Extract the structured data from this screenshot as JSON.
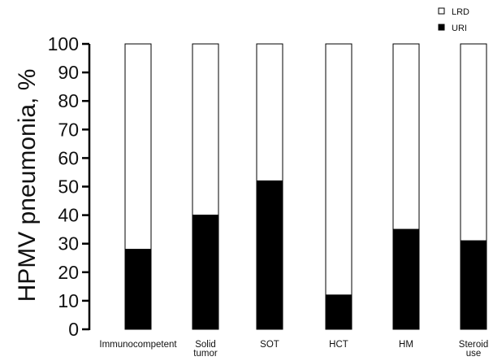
{
  "chart_data": {
    "type": "bar",
    "stacked": true,
    "categories": [
      [
        "Immunocompetent"
      ],
      [
        "Solid",
        "tumor"
      ],
      [
        "SOT"
      ],
      [
        "HCT"
      ],
      [
        "HM"
      ],
      [
        "Steroid",
        "use"
      ]
    ],
    "series": [
      {
        "name": "URI",
        "values": [
          28,
          40,
          52,
          12,
          35,
          31
        ],
        "color": "#000000"
      },
      {
        "name": "LRD",
        "values": [
          72,
          60,
          48,
          88,
          65,
          69
        ],
        "color": "#ffffff"
      }
    ],
    "title": "",
    "xlabel": "",
    "ylabel": "HPMV pneumonia, %",
    "ylim": [
      0,
      100
    ],
    "yticks": [
      0,
      10,
      20,
      30,
      40,
      50,
      60,
      70,
      80,
      90,
      100
    ],
    "grid": false,
    "legend": {
      "position": "top-right",
      "entries": [
        "LRD",
        "URI"
      ]
    }
  }
}
